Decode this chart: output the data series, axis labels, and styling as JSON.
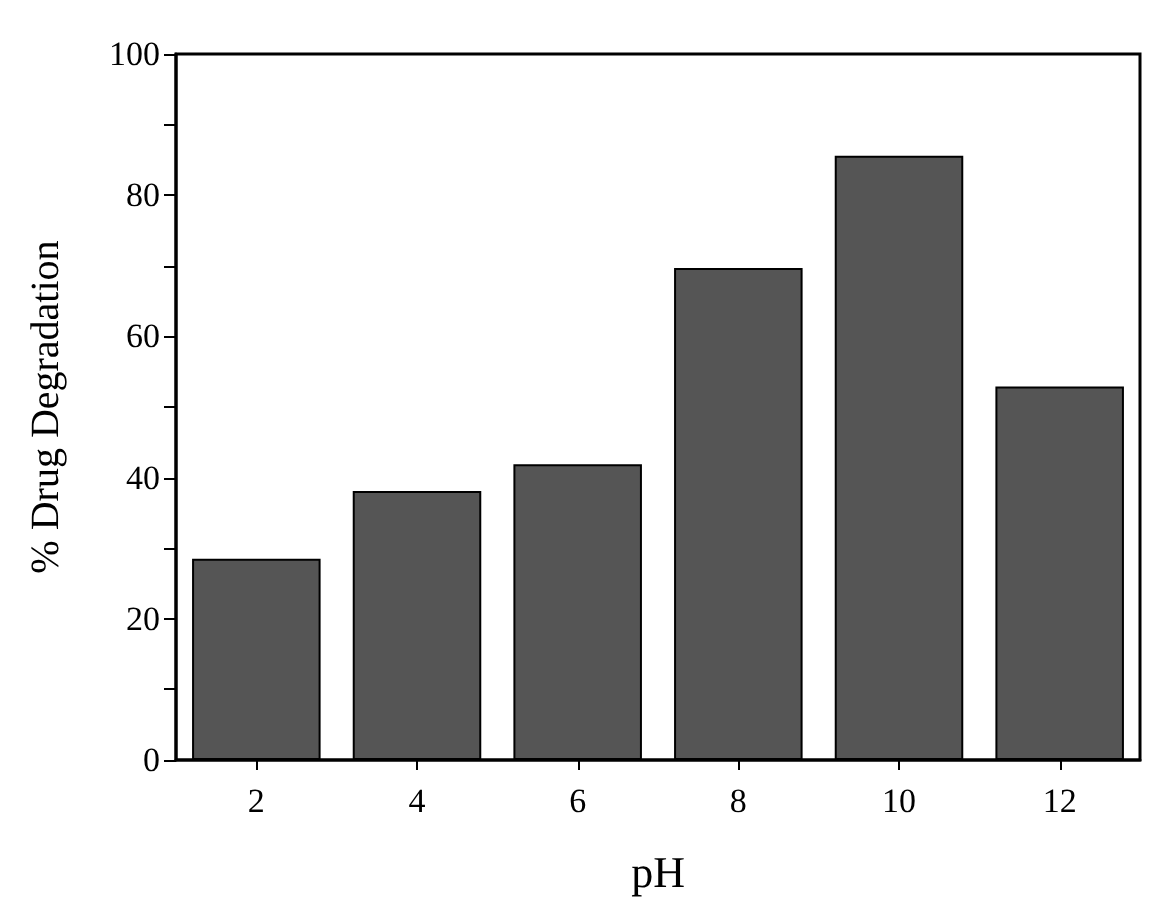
{
  "chart_data": {
    "type": "bar",
    "xlabel": "pH",
    "ylabel": "% Drug Degradation",
    "categories": [
      "2",
      "4",
      "6",
      "8",
      "10",
      "12"
    ],
    "values": [
      28.5,
      38.1,
      41.9,
      69.7,
      85.6,
      52.9
    ],
    "color": "#555555",
    "ylim": [
      0,
      100
    ],
    "yticks": [
      0,
      {
        "value": 10,
        "label": null
      },
      20,
      {
        "value": 30,
        "label": null
      },
      40,
      {
        "value": 50,
        "label": null
      },
      60,
      {
        "value": 70,
        "label": null
      },
      80,
      {
        "value": 90,
        "label": null
      },
      100
    ],
    "grid": false
  }
}
